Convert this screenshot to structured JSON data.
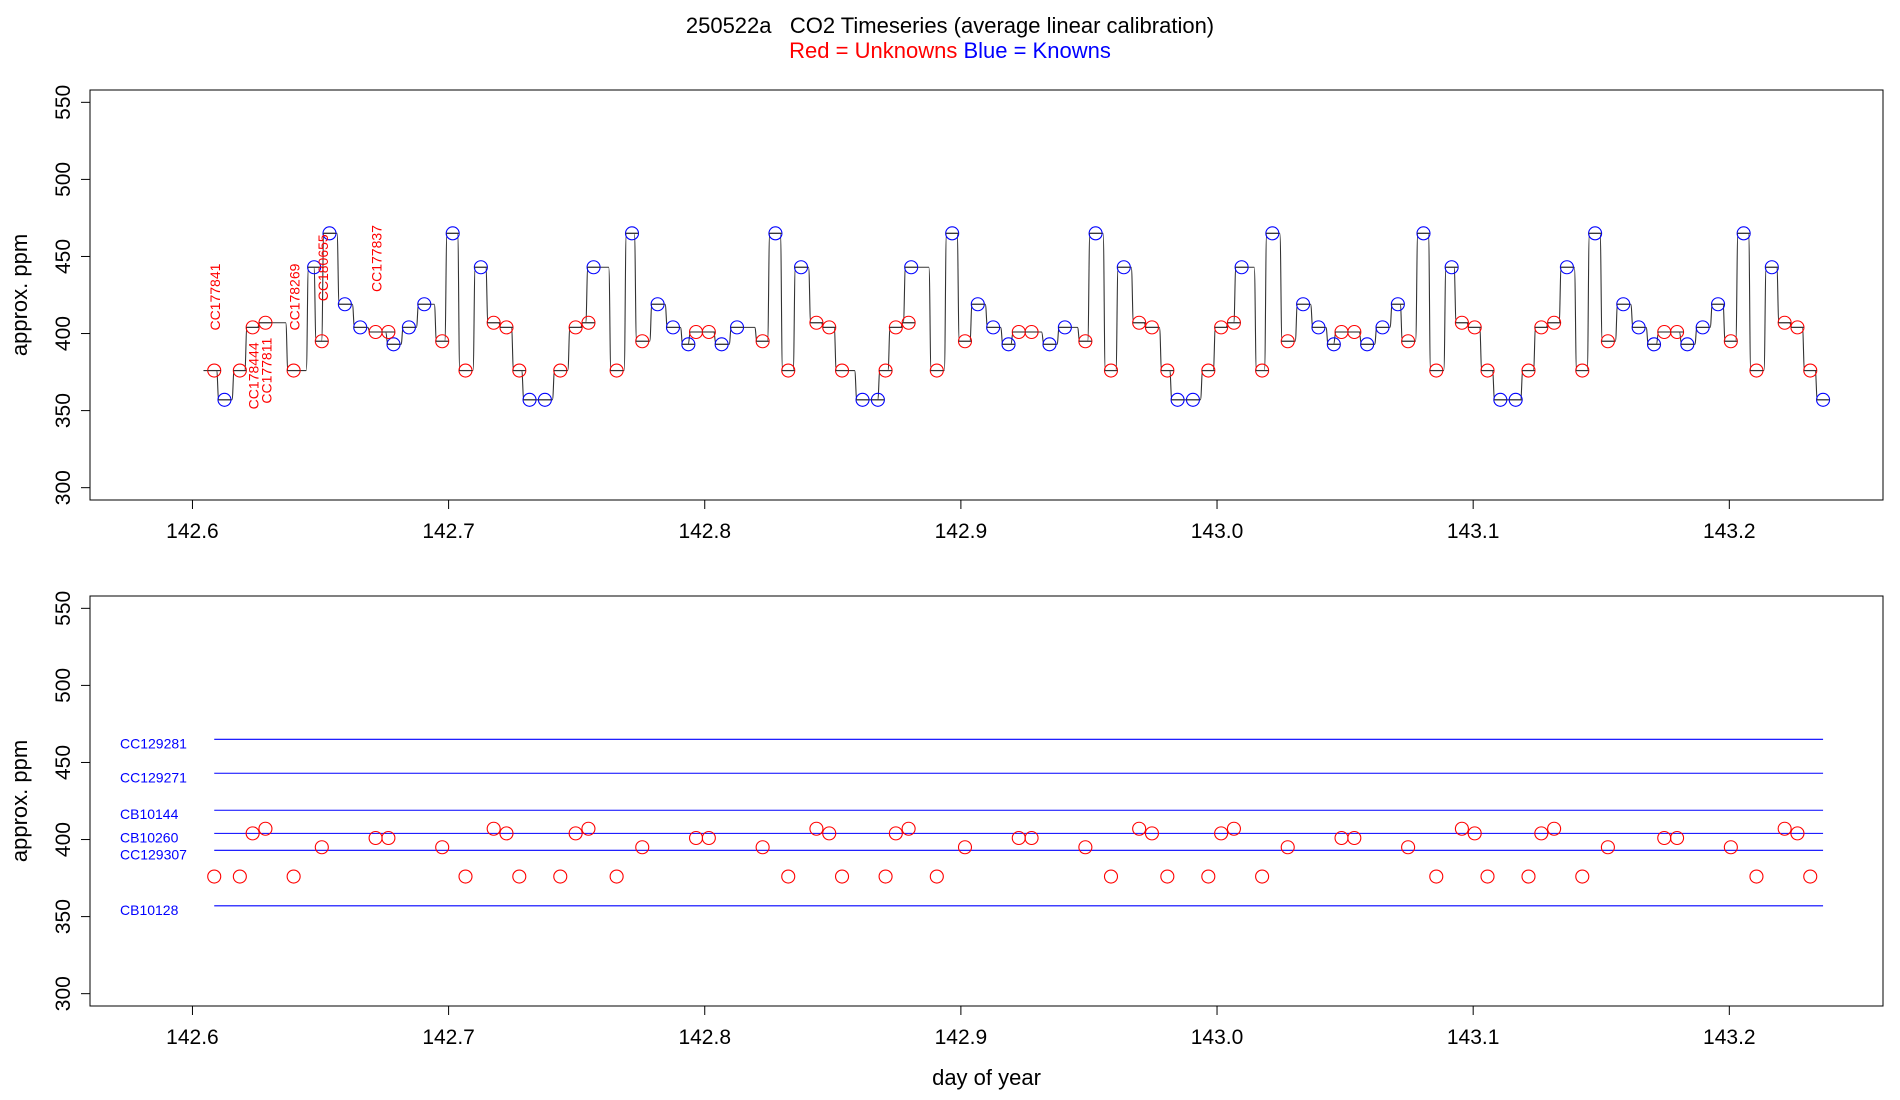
{
  "title": "250522a   CO2 Timeseries (average linear calibration)",
  "subtitle": {
    "red_text": "Red = Unknowns",
    "blue_text": "Blue = Knowns",
    "red_color": "#ff0000",
    "blue_color": "#0000ff"
  },
  "chart_data": [
    {
      "type": "line",
      "panel": "top",
      "title": "",
      "xlabel": "",
      "ylabel": "approx. ppm",
      "xlim": [
        142.56,
        143.26
      ],
      "ylim": [
        292,
        558
      ],
      "xticks": [
        "142.6",
        "142.7",
        "142.8",
        "142.9",
        "143.0",
        "143.1",
        "143.2"
      ],
      "yticks": [
        "300",
        "350",
        "400",
        "450",
        "500",
        "550"
      ],
      "grid": false,
      "series": [
        {
          "color": "#0000ff",
          "marker": "circle",
          "x": [
            142.6125,
            142.6475,
            142.6535,
            142.6595,
            142.6655,
            142.6785,
            142.6845,
            142.6905,
            142.7016,
            142.7126,
            142.7316,
            142.7376,
            142.7566,
            142.7716,
            142.7816,
            142.7876,
            142.7936,
            142.8066,
            142.8126,
            142.8276,
            142.8376,
            142.8616,
            142.8676,
            142.8806,
            142.8966,
            142.9066,
            142.9126,
            142.9186,
            142.9346,
            142.9406,
            142.9526,
            142.9636,
            142.9846,
            142.9906,
            143.0096,
            143.0216,
            143.0336,
            143.0396,
            143.0456,
            143.0586,
            143.0646,
            143.0706,
            143.0806,
            143.0916,
            143.1106,
            143.1166,
            143.1366,
            143.1476,
            143.1586,
            143.1646,
            143.1706,
            143.1836,
            143.1896,
            143.1956,
            143.2056,
            143.2166,
            143.2366
          ],
          "y": [
            357,
            443,
            465,
            419,
            404,
            393,
            404,
            419,
            465,
            443,
            357,
            357,
            443,
            465,
            419,
            404,
            393,
            393,
            404,
            465,
            443,
            357,
            357,
            443,
            465,
            419,
            404,
            393,
            393,
            404,
            465,
            443,
            357,
            357,
            443,
            465,
            419,
            404,
            393,
            393,
            404,
            419,
            465,
            443,
            357,
            357,
            443,
            465,
            419,
            404,
            393,
            393,
            404,
            419,
            465,
            443,
            357
          ]
        },
        {
          "color": "#ff0000",
          "marker": "circle",
          "x": [
            142.6085,
            142.6185,
            142.6235,
            142.6285,
            142.6395,
            142.6505,
            142.6715,
            142.6765,
            142.6975,
            142.7066,
            142.7176,
            142.7226,
            142.7276,
            142.7436,
            142.7496,
            142.7546,
            142.7656,
            142.7756,
            142.7966,
            142.8016,
            142.8226,
            142.8326,
            142.8436,
            142.8486,
            142.8536,
            142.8706,
            142.8746,
            142.8796,
            142.8906,
            142.9016,
            142.9226,
            142.9276,
            142.9486,
            142.9586,
            142.9696,
            142.9746,
            142.9806,
            142.9966,
            143.0016,
            143.0066,
            143.0176,
            143.0276,
            143.0486,
            143.0536,
            143.0746,
            143.0856,
            143.0956,
            143.1006,
            143.1056,
            143.1216,
            143.1266,
            143.1316,
            143.1426,
            143.1526,
            143.1746,
            143.1796,
            143.2006,
            143.2106,
            143.2216,
            143.2266,
            143.2316
          ],
          "y": [
            376,
            376,
            404,
            407,
            376,
            395,
            401,
            401,
            395,
            376,
            407,
            404,
            376,
            376,
            404,
            407,
            376,
            395,
            401,
            401,
            395,
            376,
            407,
            404,
            376,
            376,
            404,
            407,
            376,
            395,
            401,
            401,
            395,
            376,
            407,
            404,
            376,
            376,
            404,
            407,
            376,
            395,
            401,
            401,
            395,
            376,
            407,
            404,
            376,
            376,
            404,
            407,
            376,
            395,
            401,
            401,
            395,
            376,
            407,
            404,
            376
          ]
        }
      ],
      "annotations": [
        {
          "text": "CC177841",
          "x": 142.6085,
          "y": 376,
          "position": "above"
        },
        {
          "text": "CC178444",
          "x": 142.6235,
          "y": 404,
          "position": "below"
        },
        {
          "text": "CC177811",
          "x": 142.6285,
          "y": 407,
          "position": "below"
        },
        {
          "text": "CC178269",
          "x": 142.6395,
          "y": 376,
          "position": "above"
        },
        {
          "text": "CC180655",
          "x": 142.6505,
          "y": 395,
          "position": "above"
        },
        {
          "text": "CC177837",
          "x": 142.6715,
          "y": 401,
          "position": "above"
        }
      ]
    },
    {
      "type": "scatter",
      "panel": "bottom",
      "title": "",
      "xlabel": "day of year",
      "ylabel": "approx. ppm",
      "xlim": [
        142.56,
        143.26
      ],
      "ylim": [
        292,
        558
      ],
      "xticks": [
        "142.6",
        "142.7",
        "142.8",
        "142.9",
        "143.0",
        "143.1",
        "143.2"
      ],
      "yticks": [
        "300",
        "350",
        "400",
        "450",
        "500",
        "550"
      ],
      "grid": false,
      "reference_lines": [
        {
          "name": "CC129281",
          "y": 465,
          "color": "#0000ff"
        },
        {
          "name": "CC129271",
          "y": 443,
          "color": "#0000ff"
        },
        {
          "name": "CB10144",
          "y": 419,
          "color": "#0000ff"
        },
        {
          "name": "CB10260",
          "y": 404,
          "color": "#0000ff"
        },
        {
          "name": "CC129307",
          "y": 393,
          "color": "#0000ff"
        },
        {
          "name": "CB10128",
          "y": 357,
          "color": "#0000ff"
        }
      ],
      "line_x_range": [
        142.6085,
        143.2366
      ],
      "series": [
        {
          "color": "#ff0000",
          "marker": "circle",
          "x": [
            142.6085,
            142.6185,
            142.6235,
            142.6285,
            142.6395,
            142.6505,
            142.6715,
            142.6765,
            142.6975,
            142.7066,
            142.7176,
            142.7226,
            142.7276,
            142.7436,
            142.7496,
            142.7546,
            142.7656,
            142.7756,
            142.7966,
            142.8016,
            142.8226,
            142.8326,
            142.8436,
            142.8486,
            142.8536,
            142.8706,
            142.8746,
            142.8796,
            142.8906,
            142.9016,
            142.9226,
            142.9276,
            142.9486,
            142.9586,
            142.9696,
            142.9746,
            142.9806,
            142.9966,
            143.0016,
            143.0066,
            143.0176,
            143.0276,
            143.0486,
            143.0536,
            143.0746,
            143.0856,
            143.0956,
            143.1006,
            143.1056,
            143.1216,
            143.1266,
            143.1316,
            143.1426,
            143.1526,
            143.1746,
            143.1796,
            143.2006,
            143.2106,
            143.2216,
            143.2266,
            143.2316
          ],
          "y": [
            376,
            376,
            404,
            407,
            376,
            395,
            401,
            401,
            395,
            376,
            407,
            404,
            376,
            376,
            404,
            407,
            376,
            395,
            401,
            401,
            395,
            376,
            407,
            404,
            376,
            376,
            404,
            407,
            376,
            395,
            401,
            401,
            395,
            376,
            407,
            404,
            376,
            376,
            404,
            407,
            376,
            395,
            401,
            401,
            395,
            376,
            407,
            404,
            376,
            376,
            404,
            407,
            376,
            395,
            401,
            401,
            395,
            376,
            407,
            404,
            376
          ]
        }
      ]
    }
  ]
}
